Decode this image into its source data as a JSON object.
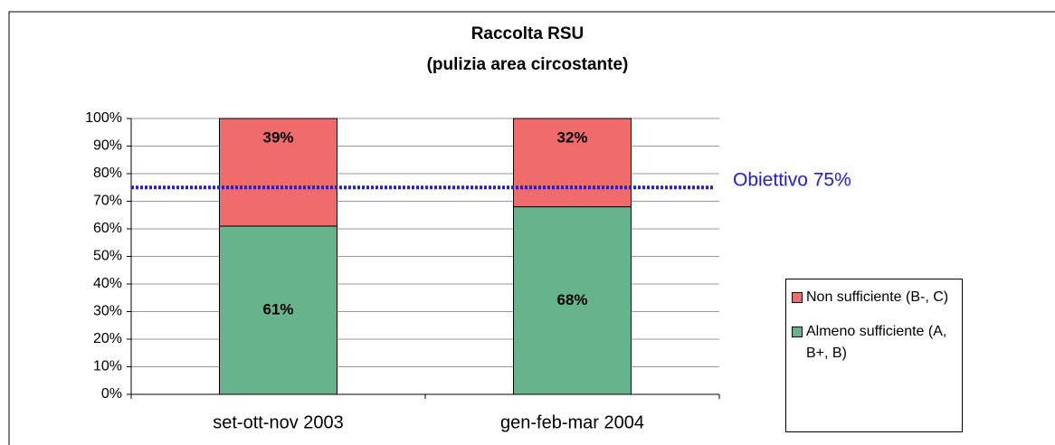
{
  "chart_data": {
    "type": "stacked_bar",
    "title": "Raccolta RSU",
    "subtitle": "(pulizia area circostante)",
    "categories": [
      "set-ott-nov 2003",
      "gen-feb-mar 2004"
    ],
    "series": [
      {
        "name": "Almeno sufficiente (A, B+, B)",
        "color": "#66b38c",
        "values": [
          61,
          68
        ],
        "value_labels": [
          "61%",
          "68%"
        ]
      },
      {
        "name": "Non sufficiente (B-, C)",
        "color": "#f06b6b",
        "values": [
          39,
          32
        ],
        "value_labels": [
          "39%",
          "32%"
        ]
      }
    ],
    "ylim": [
      0,
      100
    ],
    "yticks": [
      {
        "value": 0,
        "label": "0%"
      },
      {
        "value": 10,
        "label": "10%"
      },
      {
        "value": 20,
        "label": "20%"
      },
      {
        "value": 30,
        "label": "30%"
      },
      {
        "value": 40,
        "label": "40%"
      },
      {
        "value": 50,
        "label": "50%"
      },
      {
        "value": 60,
        "label": "60%"
      },
      {
        "value": 70,
        "label": "70%"
      },
      {
        "value": 80,
        "label": "80%"
      },
      {
        "value": 90,
        "label": "90%"
      },
      {
        "value": 100,
        "label": "100%"
      }
    ],
    "grid": true,
    "target": {
      "value": 75,
      "label": "Obiettivo 75%",
      "color": "#1f1fd6"
    },
    "legend": "right"
  }
}
